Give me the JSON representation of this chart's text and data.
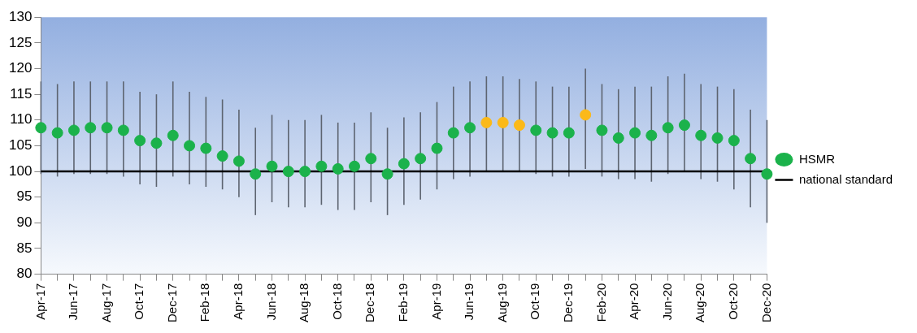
{
  "chart_data": {
    "type": "scatter",
    "categories": [
      "Apr-17",
      null,
      "Jun-17",
      null,
      "Aug-17",
      null,
      "Oct-17",
      null,
      "Dec-17",
      null,
      "Feb-18",
      null,
      "Apr-18",
      null,
      "Jun-18",
      null,
      "Aug-18",
      null,
      "Oct-18",
      null,
      "Dec-18",
      null,
      "Feb-19",
      null,
      "Apr-19",
      null,
      "Jun-19",
      null,
      "Aug-19",
      null,
      "Oct-19",
      null,
      "Dec-19",
      null,
      "Feb-20",
      null,
      "Apr-20",
      null,
      "Jun-20",
      null,
      "Aug-20",
      null,
      "Oct-20",
      null,
      "Dec-20"
    ],
    "ylim": [
      80,
      130
    ],
    "yticks": [
      80,
      85,
      90,
      95,
      100,
      105,
      110,
      115,
      120,
      125,
      130
    ],
    "grid": false,
    "legend": "right",
    "series": [
      {
        "name": "HSMR",
        "marker": "circle",
        "color": "#1bb24b",
        "values": [
          108.5,
          107.5,
          108,
          108.5,
          108.5,
          108,
          106,
          105.5,
          107,
          105,
          104.5,
          103,
          102,
          99.5,
          101,
          100,
          100,
          101,
          100.5,
          101,
          102.5,
          99.5,
          101.5,
          102.5,
          104.5,
          107.5,
          108.5,
          109.5,
          109.5,
          109,
          108,
          107.5,
          107.5,
          111,
          108,
          106.5,
          107.5,
          107,
          108.5,
          109,
          107,
          106.5,
          106,
          102.5,
          99.5
        ],
        "colors": [
          "#1bb24b",
          "#1bb24b",
          "#1bb24b",
          "#1bb24b",
          "#1bb24b",
          "#1bb24b",
          "#1bb24b",
          "#1bb24b",
          "#1bb24b",
          "#1bb24b",
          "#1bb24b",
          "#1bb24b",
          "#1bb24b",
          "#1bb24b",
          "#1bb24b",
          "#1bb24b",
          "#1bb24b",
          "#1bb24b",
          "#1bb24b",
          "#1bb24b",
          "#1bb24b",
          "#1bb24b",
          "#1bb24b",
          "#1bb24b",
          "#1bb24b",
          "#1bb24b",
          "#1bb24b",
          "#fbb919",
          "#fbb919",
          "#fbb919",
          "#1bb24b",
          "#1bb24b",
          "#1bb24b",
          "#fbb919",
          "#1bb24b",
          "#1bb24b",
          "#1bb24b",
          "#1bb24b",
          "#1bb24b",
          "#1bb24b",
          "#1bb24b",
          "#1bb24b",
          "#1bb24b",
          "#1bb24b",
          "#1bb24b"
        ],
        "errors": [
          [
            99.5,
            117.5
          ],
          [
            99,
            117
          ],
          [
            99.5,
            117.5
          ],
          [
            99.5,
            117.5
          ],
          [
            99.5,
            117.5
          ],
          [
            99,
            117.5
          ],
          [
            97.5,
            115.5
          ],
          [
            97,
            115
          ],
          [
            99,
            117.5
          ],
          [
            97.5,
            115.5
          ],
          [
            97,
            114.5
          ],
          [
            96.5,
            114
          ],
          [
            95,
            112
          ],
          [
            91.5,
            108.5
          ],
          [
            94,
            111
          ],
          [
            93,
            110
          ],
          [
            93,
            110
          ],
          [
            93.5,
            111
          ],
          [
            92.5,
            109.5
          ],
          [
            92.5,
            109.5
          ],
          [
            94,
            111.5
          ],
          [
            91.5,
            108.5
          ],
          [
            93.5,
            110.5
          ],
          [
            94.5,
            111.5
          ],
          [
            96.5,
            113.5
          ],
          [
            98.5,
            116.5
          ],
          [
            99,
            117.5
          ],
          [
            100,
            118.5
          ],
          [
            100,
            118.5
          ],
          [
            100,
            118
          ],
          [
            99.5,
            117.5
          ],
          [
            99,
            116.5
          ],
          [
            99,
            116.5
          ],
          [
            100.5,
            120
          ],
          [
            99,
            117
          ],
          [
            98.5,
            116
          ],
          [
            98.5,
            116.5
          ],
          [
            98,
            116.5
          ],
          [
            99.5,
            118.5
          ],
          [
            100,
            119
          ],
          [
            98.5,
            117
          ],
          [
            98,
            116.5
          ],
          [
            96.5,
            116
          ],
          [
            93,
            112
          ],
          [
            90,
            110
          ]
        ]
      },
      {
        "name": "national standard",
        "type": "line",
        "color": "#000000",
        "values": [
          100,
          100,
          100,
          100,
          100,
          100,
          100,
          100,
          100,
          100,
          100,
          100,
          100,
          100,
          100,
          100,
          100,
          100,
          100,
          100,
          100,
          100,
          100,
          100,
          100,
          100,
          100,
          100,
          100,
          100,
          100,
          100,
          100,
          100,
          100,
          100,
          100,
          100,
          100,
          100,
          100,
          100,
          100,
          100,
          100
        ]
      }
    ]
  }
}
